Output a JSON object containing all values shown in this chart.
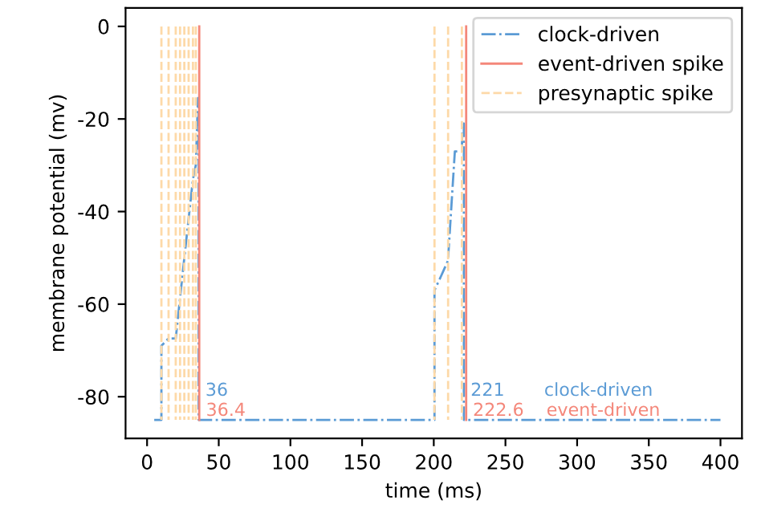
{
  "chart_data": {
    "type": "line",
    "xlabel": "time (ms)",
    "ylabel": "membrane potential (mv)",
    "xlim": [
      -15,
      415
    ],
    "ylim": [
      -89,
      4
    ],
    "xticks": [
      0,
      50,
      100,
      150,
      200,
      250,
      300,
      350,
      400
    ],
    "yticks": [
      0,
      -20,
      -40,
      -60,
      -80
    ],
    "grid": false,
    "legend": "top right",
    "marker": "none",
    "series": [
      {
        "name": "clock-driven",
        "color": "#5b9bd5",
        "line_style": "dashdot",
        "x": [
          5,
          10,
          10,
          15,
          20,
          26,
          32,
          34,
          35.5,
          36,
          36,
          200.5,
          200.5,
          205,
          209.9,
          214.7,
          219.6,
          220,
          221,
          221,
          400
        ],
        "values": [
          -85,
          -85,
          -69,
          -67.4,
          -67.4,
          -50,
          -33,
          -30,
          -15.5,
          -15.5,
          -85,
          -85,
          -57,
          -54,
          -50.6,
          -27,
          -27,
          -21,
          -21,
          -85,
          -85
        ]
      },
      {
        "name": "event-driven spike",
        "color": "#f4877a",
        "line_style": "solid",
        "x": [
          36.4,
          36.4,
          null,
          222.6,
          222.6
        ],
        "values": [
          0,
          -85,
          null,
          0,
          -85
        ]
      },
      {
        "name": "presynaptic spike",
        "color": "#fdd9a8",
        "line_style": "dashed",
        "x": [
          10,
          10,
          null,
          15,
          15,
          null,
          20,
          20,
          null,
          23,
          23,
          null,
          26,
          26,
          null,
          29,
          29,
          null,
          32,
          32,
          null,
          34,
          34,
          null,
          200.5,
          200.5,
          null,
          210,
          210,
          null,
          219.6,
          219.6
        ],
        "values": [
          0,
          -85,
          null,
          0,
          -85,
          null,
          0,
          -85,
          null,
          0,
          -85,
          null,
          0,
          -85,
          null,
          0,
          -85,
          null,
          0,
          -85,
          null,
          0,
          -85,
          null,
          0,
          -85,
          null,
          0,
          -85,
          null,
          0,
          -85
        ]
      }
    ],
    "annotations": [
      {
        "text": "36",
        "x": 36,
        "y": -85
      },
      {
        "text": "36.4",
        "x": 36.4,
        "y": -85
      },
      {
        "text": "221",
        "x": 221,
        "y": -85
      },
      {
        "text": "222.6",
        "x": 222.6,
        "y": -85
      },
      "clock-driven",
      "event-driven"
    ]
  }
}
